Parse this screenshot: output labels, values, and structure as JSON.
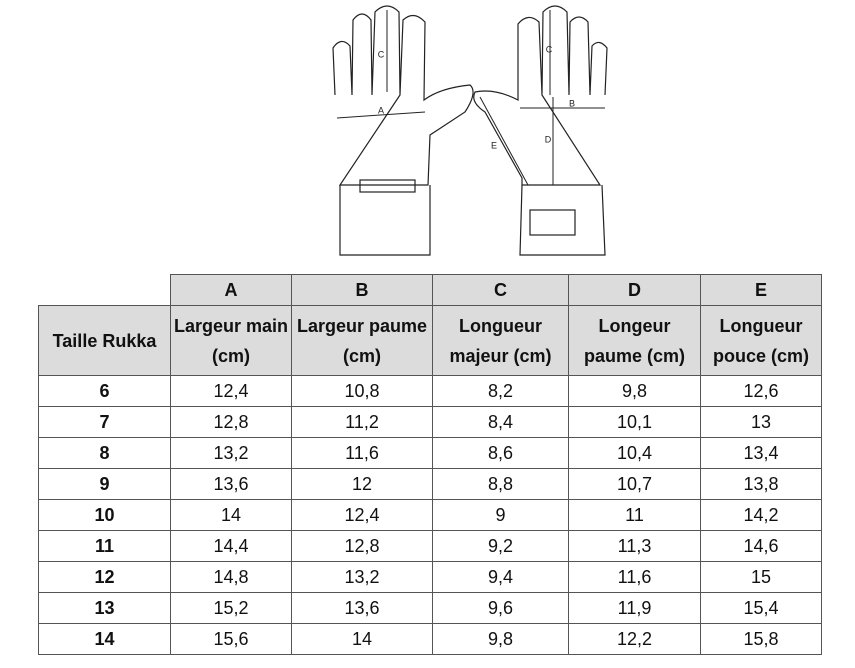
{
  "diagram": {
    "left_labels": [
      "C",
      "A"
    ],
    "right_labels": [
      "C",
      "B",
      "D",
      "E"
    ]
  },
  "table": {
    "letters": [
      "A",
      "B",
      "C",
      "D",
      "E"
    ],
    "header": [
      "Taille Rukka",
      "Largeur main (cm)",
      "Largeur paume (cm)",
      "Longueur majeur (cm)",
      "Longeur paume (cm)",
      "Longueur pouce (cm)"
    ],
    "rows": [
      [
        "6",
        "12,4",
        "10,8",
        "8,2",
        "9,8",
        "12,6"
      ],
      [
        "7",
        "12,8",
        "11,2",
        "8,4",
        "10,1",
        "13"
      ],
      [
        "8",
        "13,2",
        "11,6",
        "8,6",
        "10,4",
        "13,4"
      ],
      [
        "9",
        "13,6",
        "12",
        "8,8",
        "10,7",
        "13,8"
      ],
      [
        "10",
        "14",
        "12,4",
        "9",
        "11",
        "14,2"
      ],
      [
        "11",
        "14,4",
        "12,8",
        "9,2",
        "11,3",
        "14,6"
      ],
      [
        "12",
        "14,8",
        "13,2",
        "9,4",
        "11,6",
        "15"
      ],
      [
        "13",
        "15,2",
        "13,6",
        "9,6",
        "11,9",
        "15,4"
      ],
      [
        "14",
        "15,6",
        "14",
        "9,8",
        "12,2",
        "15,8"
      ]
    ]
  }
}
